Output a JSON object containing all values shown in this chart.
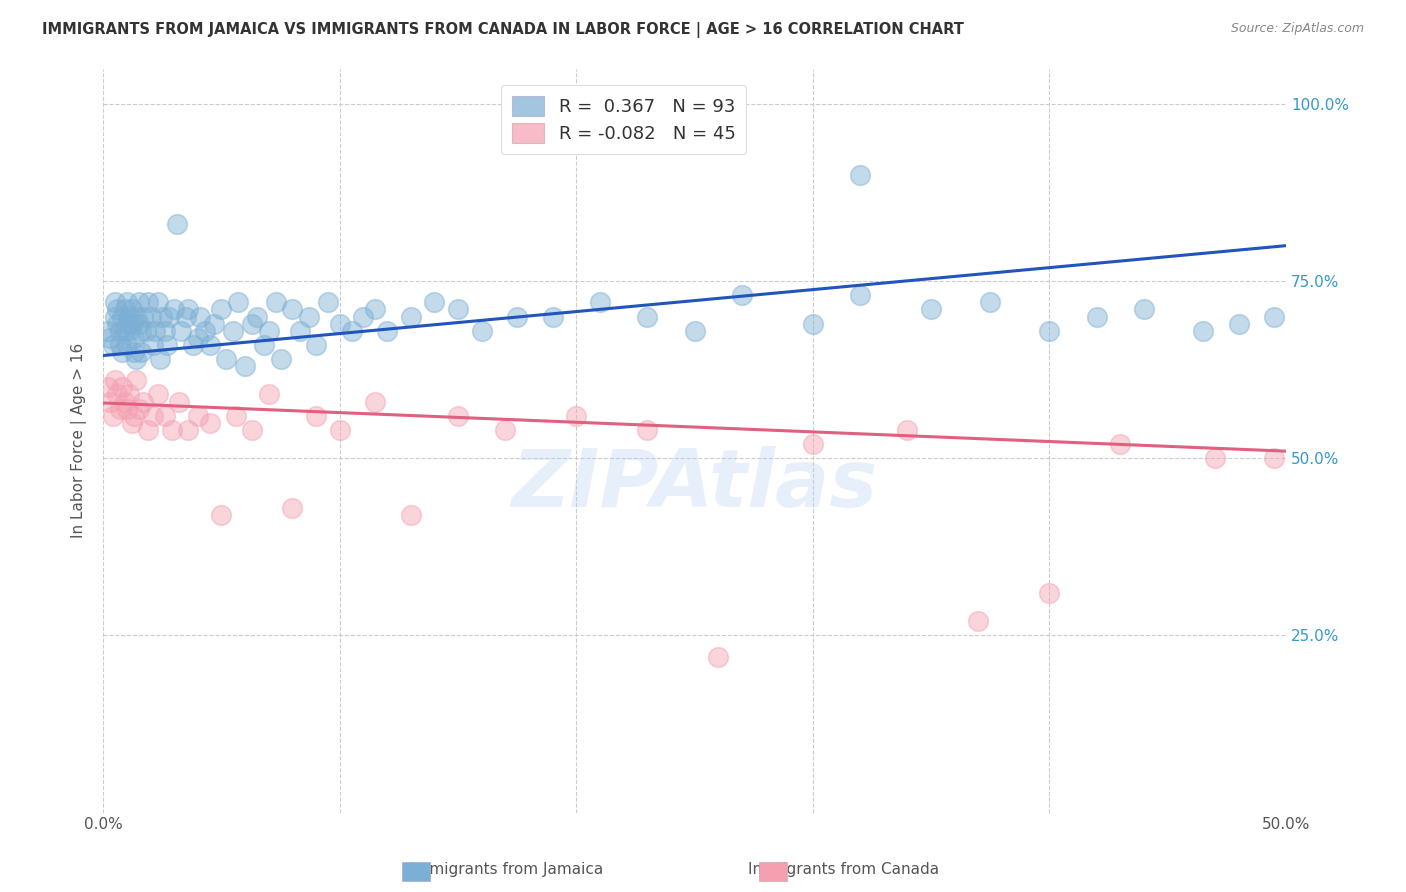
{
  "title": "IMMIGRANTS FROM JAMAICA VS IMMIGRANTS FROM CANADA IN LABOR FORCE | AGE > 16 CORRELATION CHART",
  "source": "Source: ZipAtlas.com",
  "ylabel": "In Labor Force | Age > 16",
  "xlim": [
    0.0,
    0.5
  ],
  "ylim": [
    0.0,
    1.05
  ],
  "ytick_positions": [
    0.0,
    0.25,
    0.5,
    0.75,
    1.0
  ],
  "ytick_labels_right": [
    "",
    "25.0%",
    "50.0%",
    "75.0%",
    "100.0%"
  ],
  "legend_r1": "R =  0.367",
  "legend_n1": "N = 93",
  "legend_r2": "R = -0.082",
  "legend_n2": "N = 45",
  "blue_color": "#7BAFD4",
  "pink_color": "#F4A0B0",
  "blue_line_color": "#2255BB",
  "pink_line_color": "#E06080",
  "blue_scatter_x": [
    0.002,
    0.003,
    0.004,
    0.005,
    0.005,
    0.006,
    0.006,
    0.007,
    0.007,
    0.008,
    0.008,
    0.009,
    0.009,
    0.01,
    0.01,
    0.01,
    0.011,
    0.011,
    0.012,
    0.012,
    0.013,
    0.013,
    0.014,
    0.014,
    0.015,
    0.015,
    0.016,
    0.016,
    0.017,
    0.018,
    0.019,
    0.02,
    0.021,
    0.022,
    0.023,
    0.024,
    0.025,
    0.026,
    0.027,
    0.028,
    0.03,
    0.031,
    0.033,
    0.035,
    0.036,
    0.038,
    0.04,
    0.041,
    0.043,
    0.045,
    0.047,
    0.05,
    0.052,
    0.055,
    0.057,
    0.06,
    0.063,
    0.065,
    0.068,
    0.07,
    0.073,
    0.075,
    0.08,
    0.083,
    0.087,
    0.09,
    0.095,
    0.1,
    0.105,
    0.11,
    0.115,
    0.12,
    0.13,
    0.14,
    0.15,
    0.16,
    0.175,
    0.19,
    0.21,
    0.23,
    0.25,
    0.27,
    0.3,
    0.32,
    0.35,
    0.375,
    0.4,
    0.42,
    0.44,
    0.465,
    0.48,
    0.495,
    0.32
  ],
  "blue_scatter_y": [
    0.68,
    0.67,
    0.66,
    0.72,
    0.7,
    0.69,
    0.71,
    0.68,
    0.66,
    0.65,
    0.7,
    0.71,
    0.68,
    0.66,
    0.69,
    0.72,
    0.7,
    0.68,
    0.71,
    0.69,
    0.65,
    0.67,
    0.64,
    0.7,
    0.69,
    0.72,
    0.68,
    0.65,
    0.7,
    0.68,
    0.72,
    0.7,
    0.66,
    0.68,
    0.72,
    0.64,
    0.7,
    0.68,
    0.66,
    0.7,
    0.71,
    0.83,
    0.68,
    0.7,
    0.71,
    0.66,
    0.67,
    0.7,
    0.68,
    0.66,
    0.69,
    0.71,
    0.64,
    0.68,
    0.72,
    0.63,
    0.69,
    0.7,
    0.66,
    0.68,
    0.72,
    0.64,
    0.71,
    0.68,
    0.7,
    0.66,
    0.72,
    0.69,
    0.68,
    0.7,
    0.71,
    0.68,
    0.7,
    0.72,
    0.71,
    0.68,
    0.7,
    0.7,
    0.72,
    0.7,
    0.68,
    0.73,
    0.69,
    0.73,
    0.71,
    0.72,
    0.68,
    0.7,
    0.71,
    0.68,
    0.69,
    0.7,
    0.9
  ],
  "pink_scatter_x": [
    0.002,
    0.003,
    0.004,
    0.005,
    0.006,
    0.007,
    0.008,
    0.009,
    0.01,
    0.011,
    0.012,
    0.013,
    0.014,
    0.015,
    0.017,
    0.019,
    0.021,
    0.023,
    0.026,
    0.029,
    0.032,
    0.036,
    0.04,
    0.045,
    0.05,
    0.056,
    0.063,
    0.07,
    0.08,
    0.09,
    0.1,
    0.115,
    0.13,
    0.15,
    0.17,
    0.2,
    0.23,
    0.26,
    0.3,
    0.34,
    0.37,
    0.4,
    0.43,
    0.47,
    0.495
  ],
  "pink_scatter_y": [
    0.6,
    0.58,
    0.56,
    0.61,
    0.59,
    0.57,
    0.6,
    0.58,
    0.57,
    0.59,
    0.55,
    0.56,
    0.61,
    0.57,
    0.58,
    0.54,
    0.56,
    0.59,
    0.56,
    0.54,
    0.58,
    0.54,
    0.56,
    0.55,
    0.42,
    0.56,
    0.54,
    0.59,
    0.43,
    0.56,
    0.54,
    0.58,
    0.42,
    0.56,
    0.54,
    0.56,
    0.54,
    0.22,
    0.52,
    0.54,
    0.27,
    0.31,
    0.52,
    0.5,
    0.5
  ],
  "blue_trend_x": [
    0.0,
    0.5
  ],
  "blue_trend_y": [
    0.645,
    0.8
  ],
  "pink_trend_x": [
    0.0,
    0.5
  ],
  "pink_trend_y": [
    0.578,
    0.51
  ],
  "watermark": "ZIPAtlas",
  "background_color": "#ffffff",
  "grid_color": "#cccccc",
  "title_color": "#333333",
  "right_tick_color": "#3399CC",
  "label_color": "#555555"
}
